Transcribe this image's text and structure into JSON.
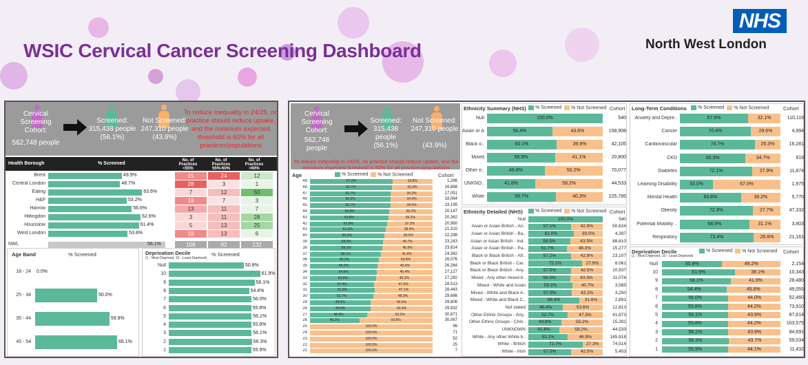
{
  "title": "WSIC Cervical Cancer Screening Dashboard",
  "org": {
    "logo": "NHS",
    "region": "North West London"
  },
  "colors": {
    "screened": "#5bb99a",
    "not_screened": "#f9c08b",
    "summary_bg": "#9b9b9b",
    "title": "#7a2f97",
    "note": "#e8252b"
  },
  "summary": {
    "cohort_label": "Cervical Screening Cohort:",
    "cohort_value": "562,748 people",
    "screened_label": "Screened:",
    "screened_value": "315,438 people",
    "screened_pct": "(56.1%)",
    "not_label": "Not Screened:",
    "not_value": "247,310 people",
    "not_pct": "(43.9%)",
    "note": "To reduce inequality in 24/25, no practice should reduce uptake, and the minimum expected threshold is 60% for all practices/populations"
  },
  "borough": {
    "headers": [
      "Health Borough",
      "% Screened",
      "No. of Practices <55%",
      "No. of Practices 55%-60%",
      "No. of Practices >60%"
    ],
    "rows": [
      {
        "name": "Brent",
        "pct": 49.9,
        "label": "49.9%",
        "a": "15",
        "b": "24",
        "c": "12"
      },
      {
        "name": "Central London",
        "pct": 48.7,
        "label": "48.7%",
        "a": "28",
        "b": "3",
        "c": "1"
      },
      {
        "name": "Ealing",
        "pct": 63.6,
        "label": "63.6%",
        "a": "7",
        "b": "12",
        "c": "50"
      },
      {
        "name": "H&F",
        "pct": 53.2,
        "label": "53.2%",
        "a": "18",
        "b": "7",
        "c": "3"
      },
      {
        "name": "Harrow",
        "pct": 56.6,
        "label": "56.6%",
        "a": "13",
        "b": "11",
        "c": "7"
      },
      {
        "name": "Hillingdon",
        "pct": 62.6,
        "label": "62.6%",
        "a": "3",
        "b": "11",
        "c": "28"
      },
      {
        "name": "Hounslow",
        "pct": 61.4,
        "label": "61.4%",
        "a": "5",
        "b": "13",
        "c": "25"
      },
      {
        "name": "West London",
        "pct": 53.8,
        "label": "53.8%",
        "a": "19",
        "b": "13",
        "c": "6"
      }
    ],
    "total": {
      "name": "NWL",
      "label": "56.1%",
      "a": "108",
      "b": "92",
      "c": "132"
    }
  },
  "ageband": {
    "headers": [
      "Age Band",
      "% Screened"
    ],
    "rows": [
      {
        "name": "18 - 24",
        "pct": 0.0,
        "label": "0.0%"
      },
      {
        "name": "25 - 34",
        "pct": 50.0,
        "label": "50.0%"
      },
      {
        "name": "35 - 44",
        "pct": 59.9,
        "label": "59.9%"
      },
      {
        "name": "45 - 54",
        "pct": 66.1,
        "label": "66.1%"
      }
    ]
  },
  "decile_left": {
    "title": "Deprivation Decile",
    "sub": "(1 - Most Deprived, 10 - Least Deprived)",
    "col": "% Screened",
    "rows": [
      {
        "name": "Null",
        "pct": 50.8,
        "label": "50.8%"
      },
      {
        "name": "10",
        "pct": 61.9,
        "label": "61.9%"
      },
      {
        "name": "9",
        "pct": 58.1,
        "label": "58.1%"
      },
      {
        "name": "8",
        "pct": 54.4,
        "label": "54.4%"
      },
      {
        "name": "7",
        "pct": 56.0,
        "label": "56.0%"
      },
      {
        "name": "6",
        "pct": 55.8,
        "label": "55.8%"
      },
      {
        "name": "5",
        "pct": 56.1,
        "label": "56.1%"
      },
      {
        "name": "4",
        "pct": 55.8,
        "label": "55.8%"
      },
      {
        "name": "3",
        "pct": 56.1,
        "label": "56.1%"
      },
      {
        "name": "2",
        "pct": 56.3,
        "label": "56.3%"
      },
      {
        "name": "1",
        "pct": 55.9,
        "label": "55.9%"
      }
    ]
  },
  "legend": {
    "screened": "% Screened",
    "not": "% Not Screened",
    "cohort": "Cohort"
  },
  "age": {
    "title": "Age",
    "rows": [
      {
        "a": "49",
        "s": 67.2,
        "sl": "67.2%",
        "nl": "32.8%",
        "c": "1,286"
      },
      {
        "a": "48",
        "s": 66.7,
        "sl": "66.7%",
        "nl": "33.3%",
        "c": "16,688"
      },
      {
        "a": "47",
        "s": 65.7,
        "sl": "65.7%",
        "nl": "34.3%",
        "c": "17,051"
      },
      {
        "a": "46",
        "s": 66.0,
        "sl": "66.0%",
        "nl": "34.0%",
        "c": "18,064"
      },
      {
        "a": "45",
        "s": 65.7,
        "sl": "65.7%",
        "nl": "34.3%",
        "c": "19,195"
      },
      {
        "a": "44",
        "s": 64.8,
        "sl": "64.8%",
        "nl": "35.2%",
        "c": "20,147"
      },
      {
        "a": "43",
        "s": 63.8,
        "sl": "63.8%",
        "nl": "36.2%",
        "c": "20,362"
      },
      {
        "a": "42",
        "s": 62.8,
        "sl": "62.8%",
        "nl": "37.2%",
        "c": "20,980"
      },
      {
        "a": "41",
        "s": 61.6,
        "sl": "61.6%",
        "nl": "38.4%",
        "c": "21,310"
      },
      {
        "a": "40",
        "s": 60.5,
        "sl": "60.5%",
        "nl": "39.5%",
        "c": "22,298"
      },
      {
        "a": "39",
        "s": 59.3,
        "sl": "59.3%",
        "nl": "40.7%",
        "c": "23,243"
      },
      {
        "a": "38",
        "s": 59.1,
        "sl": "59.1%",
        "nl": "40.9%",
        "c": "23,814"
      },
      {
        "a": "37",
        "s": 58.1,
        "sl": "58.1%",
        "nl": "41.9%",
        "c": "24,382"
      },
      {
        "a": "36",
        "s": 56.2,
        "sl": "56.2%",
        "nl": "43.8%",
        "c": "26,076"
      },
      {
        "a": "35",
        "s": 55.0,
        "sl": "55.0%",
        "nl": "45.0%",
        "c": "26,264"
      },
      {
        "a": "34",
        "s": 54.6,
        "sl": "54.6%",
        "nl": "45.4%",
        "c": "27,127"
      },
      {
        "a": "33",
        "s": 53.8,
        "sl": "53.8%",
        "nl": "46.2%",
        "c": "27,292"
      },
      {
        "a": "32",
        "s": 52.4,
        "sl": "52.4%",
        "nl": "47.6%",
        "c": "28,513"
      },
      {
        "a": "31",
        "s": 52.9,
        "sl": "52.9%",
        "nl": "47.1%",
        "c": "28,443"
      },
      {
        "a": "30",
        "s": 51.7,
        "sl": "51.7%",
        "nl": "48.3%",
        "c": "29,686"
      },
      {
        "a": "29",
        "s": 49.4,
        "sl": "49.4%",
        "nl": "50.6%",
        "c": "29,806"
      },
      {
        "a": "28",
        "s": 49.6,
        "sl": "49.6%",
        "nl": "50.4%",
        "c": "29,932"
      },
      {
        "a": "27",
        "s": 46.8,
        "sl": "46.8%",
        "nl": "53.2%",
        "c": "30,671"
      },
      {
        "a": "26",
        "s": 40.2,
        "sl": "40.2%",
        "nl": "59.8%",
        "c": "30,067"
      },
      {
        "a": "25",
        "s": 0,
        "sl": "",
        "nl": "100.0%",
        "c": "96"
      },
      {
        "a": "24",
        "s": 0,
        "sl": "",
        "nl": "100.0%",
        "c": "71"
      },
      {
        "a": "23",
        "s": 0,
        "sl": "",
        "nl": "100.0%",
        "c": "52"
      },
      {
        "a": "22",
        "s": 0,
        "sl": "",
        "nl": "100.0%",
        "c": "25"
      },
      {
        "a": "21",
        "s": 0,
        "sl": "",
        "nl": "100.0%",
        "c": "7"
      }
    ]
  },
  "eth_summary": {
    "title": "Ethnicity Summary (NHS)",
    "rows": [
      {
        "n": "Null",
        "s": 100,
        "sl": "100.0%",
        "nl": "",
        "c": "540"
      },
      {
        "n": "Asian or Asian b..",
        "s": 56.4,
        "sl": "56.4%",
        "nl": "43.6%",
        "c": "158,908"
      },
      {
        "n": "Black o..",
        "s": 60.1,
        "sl": "60.1%",
        "nl": "39.9%",
        "c": "42,105"
      },
      {
        "n": "Mixed",
        "s": 58.9,
        "sl": "58.9%",
        "nl": "41.1%",
        "c": "20,800"
      },
      {
        "n": "Other e..",
        "s": 49.8,
        "sl": "49.8%",
        "nl": "50.2%",
        "c": "70,077"
      },
      {
        "n": "UNKNO..",
        "s": 41.8,
        "sl": "41.8%",
        "nl": "58.2%",
        "c": "44,533"
      },
      {
        "n": "White",
        "s": 59.7,
        "sl": "59.7%",
        "nl": "40.3%",
        "c": "225,785"
      }
    ]
  },
  "eth_detail": {
    "title": "Ethnicity Detailed (NHS)",
    "rows": [
      {
        "n": "Null",
        "s": 100,
        "sl": "100.0%",
        "nl": "",
        "c": "540"
      },
      {
        "n": "Asian or Asian British - An..",
        "s": 57.1,
        "sl": "57.1%",
        "nl": "42.9%",
        "c": "50,624"
      },
      {
        "n": "Asian or Asian British - Ba..",
        "s": 61.0,
        "sl": "61.0%",
        "nl": "39.0%",
        "c": "4,397"
      },
      {
        "n": "Asian or Asian British - Ind..",
        "s": 56.5,
        "sl": "56.5%",
        "nl": "43.5%",
        "c": "88,610"
      },
      {
        "n": "Asian or Asian British - Pa..",
        "s": 51.7,
        "sl": "51.7%",
        "nl": "48.3%",
        "c": "15,277"
      },
      {
        "n": "Black or Black British - Afr..",
        "s": 57.2,
        "sl": "57.2%",
        "nl": "42.8%",
        "c": "23,107"
      },
      {
        "n": "Black or Black British - Car..",
        "s": 72.1,
        "sl": "72.1%",
        "nl": "27.9%",
        "c": "8,061"
      },
      {
        "n": "Black or Black British - Any..",
        "s": 57.5,
        "sl": "57.5%",
        "nl": "42.5%",
        "c": "10,937"
      },
      {
        "n": "Mixed - Any other mixed b..",
        "s": 56.5,
        "sl": "56.5%",
        "nl": "43.5%",
        "c": "11,074"
      },
      {
        "n": "Mixed - White and Asian",
        "s": 59.3,
        "sl": "59.3%",
        "nl": "40.7%",
        "c": "3,585"
      },
      {
        "n": "Mixed - White and Black A..",
        "s": 57.9,
        "sl": "57.9%",
        "nl": "42.1%",
        "c": "3,250"
      },
      {
        "n": "Mixed - White and Black C..",
        "s": 68.4,
        "sl": "68.4%",
        "nl": "31.6%",
        "c": "2,891"
      },
      {
        "n": "Not stated",
        "s": 46.4,
        "sl": "46.4%",
        "nl": "53.6%",
        "c": "12,813"
      },
      {
        "n": "Other Ethnic Groups - Any..",
        "s": 52.7,
        "sl": "52.7%",
        "nl": "47.3%",
        "c": "41,873"
      },
      {
        "n": "Other Ethnic Groups - Chin..",
        "s": 44.8,
        "sl": "44.8%",
        "nl": "55.2%",
        "c": "15,391"
      },
      {
        "n": "UNKNOWN",
        "s": 41.8,
        "sl": "41.8%",
        "nl": "58.2%",
        "c": "44,533"
      },
      {
        "n": "White - Any other White b..",
        "s": 53.1,
        "sl": "53.1%",
        "nl": "46.9%",
        "c": "145,818"
      },
      {
        "n": "White - British",
        "s": 72.7,
        "sl": "72.7%",
        "nl": "27.3%",
        "c": "74,514"
      },
      {
        "n": "White - Irish",
        "s": 57.5,
        "sl": "57.5%",
        "nl": "42.5%",
        "c": "5,453"
      }
    ]
  },
  "ltc": {
    "title": "Long-Term Conditions",
    "rows": [
      {
        "n": "Anxiety and Depre..",
        "s": 67.9,
        "sl": "67.9%",
        "nl": "32.1%",
        "c": "110,119"
      },
      {
        "n": "Cancer",
        "s": 70.4,
        "sl": "70.4%",
        "nl": "29.6%",
        "c": "4,994"
      },
      {
        "n": "Cardiovascular",
        "s": 74.7,
        "sl": "74.7%",
        "nl": "25.3%",
        "c": "16,281"
      },
      {
        "n": "CKD",
        "s": 65.3,
        "sl": "65.3%",
        "nl": "34.7%",
        "c": "819"
      },
      {
        "n": "Diabetes",
        "s": 72.1,
        "sl": "72.1%",
        "nl": "27.9%",
        "c": "11,874"
      },
      {
        "n": "Learning Disability",
        "s": 33.0,
        "sl": "33.0%",
        "nl": "67.0%",
        "c": "1,975"
      },
      {
        "n": "Mental Health",
        "s": 60.8,
        "sl": "60.8%",
        "nl": "39.2%",
        "c": "5,770"
      },
      {
        "n": "Obesity",
        "s": 72.3,
        "sl": "72.3%",
        "nl": "27.7%",
        "c": "47,332"
      },
      {
        "n": "Potential Mobility ..",
        "s": 68.9,
        "sl": "68.9%",
        "nl": "31.1%",
        "c": "3,803"
      },
      {
        "n": "Respiratory",
        "s": 73.4,
        "sl": "73.4%",
        "nl": "26.6%",
        "c": "21,161"
      }
    ]
  },
  "decile_right": {
    "title": "Deprivation Decile",
    "sub": "(1 - Most Deprived, 10 - Least Deprived)",
    "rows": [
      {
        "n": "Null",
        "s": 50.8,
        "sl": "50.8%",
        "nl": "49.2%",
        "c": "2,154"
      },
      {
        "n": "10",
        "s": 61.9,
        "sl": "61.9%",
        "nl": "38.1%",
        "c": "10,343"
      },
      {
        "n": "9",
        "s": 58.1,
        "sl": "58.1%",
        "nl": "41.9%",
        "c": "28,480"
      },
      {
        "n": "8",
        "s": 54.4,
        "sl": "54.4%",
        "nl": "45.6%",
        "c": "49,055"
      },
      {
        "n": "7",
        "s": 56.0,
        "sl": "56.0%",
        "nl": "44.0%",
        "c": "52,460"
      },
      {
        "n": "6",
        "s": 55.8,
        "sl": "55.8%",
        "nl": "44.2%",
        "c": "73,910"
      },
      {
        "n": "5",
        "s": 56.1,
        "sl": "56.1%",
        "nl": "43.9%",
        "c": "87,614"
      },
      {
        "n": "4",
        "s": 55.8,
        "sl": "55.8%",
        "nl": "44.2%",
        "c": "103,575"
      },
      {
        "n": "3",
        "s": 56.1,
        "sl": "56.1%",
        "nl": "43.9%",
        "c": "84,691"
      },
      {
        "n": "2",
        "s": 56.3,
        "sl": "56.3%",
        "nl": "43.7%",
        "c": "59,034"
      },
      {
        "n": "1",
        "s": 55.9,
        "sl": "55.9%",
        "nl": "44.1%",
        "c": "11,432"
      }
    ]
  }
}
